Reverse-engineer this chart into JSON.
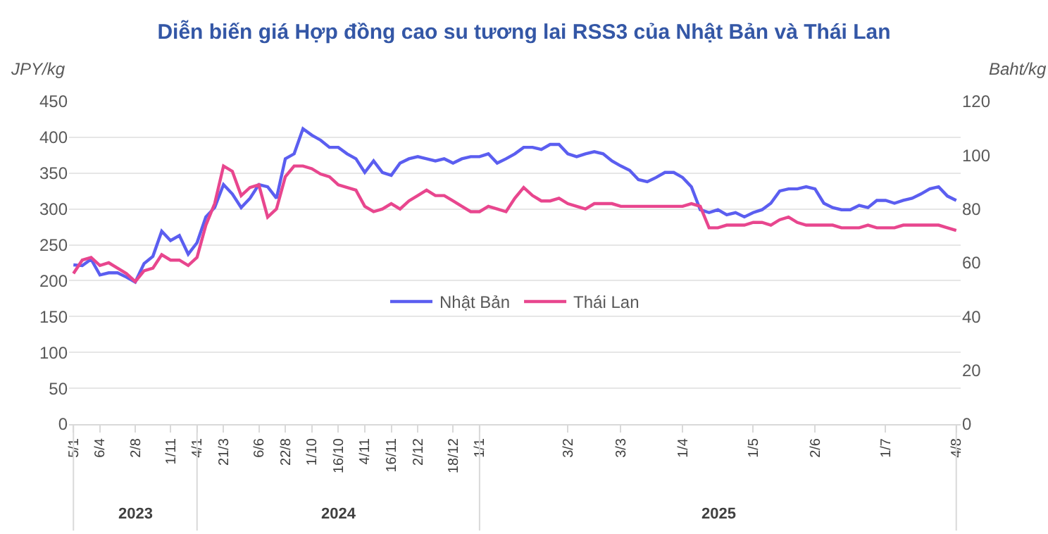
{
  "chart_data": {
    "type": "line",
    "title": "Diễn biến giá Hợp đồng cao su tương lai RSS3 của Nhật Bản và Thái Lan",
    "ylabel": "JPY/kg",
    "y2label": "Baht/kg",
    "categories": [
      "5/1",
      null,
      null,
      "6/4",
      null,
      null,
      null,
      "2/8",
      null,
      null,
      null,
      "1/11",
      null,
      null,
      "4/1",
      null,
      null,
      "21/3",
      null,
      null,
      null,
      "6/6",
      null,
      null,
      "22/8",
      null,
      null,
      "1/10",
      null,
      null,
      "16/10",
      null,
      null,
      "4/11",
      null,
      null,
      "16/11",
      null,
      null,
      "2/12",
      null,
      null,
      null,
      "18/12",
      null,
      null,
      "1/1",
      null,
      null,
      null,
      null,
      null,
      null,
      null,
      null,
      null,
      "3/2",
      null,
      null,
      null,
      null,
      null,
      "3/3",
      null,
      null,
      null,
      null,
      null,
      null,
      "1/4",
      null,
      null,
      null,
      null,
      null,
      null,
      null,
      "1/5",
      null,
      null,
      null,
      null,
      null,
      null,
      "2/6",
      null,
      null,
      null,
      null,
      null,
      null,
      null,
      "1/7",
      null,
      null,
      null,
      null,
      null,
      null,
      null,
      "4/8"
    ],
    "series": [
      {
        "name": "Nhật Bản",
        "color": "#5b5ef0",
        "values": [
          222,
          221,
          230,
          208,
          211,
          211,
          205,
          198,
          224,
          234,
          269,
          256,
          263,
          237,
          253,
          289,
          302,
          334,
          321,
          302,
          315,
          334,
          331,
          315,
          370,
          377,
          412,
          403,
          396,
          386,
          386,
          377,
          370,
          351,
          367,
          351,
          347,
          364,
          370,
          373,
          370,
          367,
          370,
          364,
          370,
          373,
          373,
          377,
          364,
          370,
          377,
          386,
          386,
          383,
          390,
          390,
          377,
          373,
          377,
          380,
          377,
          367,
          360,
          354,
          341,
          338,
          344,
          351,
          351,
          344,
          331,
          299,
          295,
          299,
          292,
          295,
          289,
          295,
          299,
          308,
          325,
          328,
          328,
          331,
          328,
          308,
          302,
          299,
          299,
          305,
          302,
          312,
          312,
          308,
          312,
          315,
          321,
          328,
          331,
          318,
          312
        ]
      },
      {
        "name": "Thái Lan",
        "color": "#e8468e",
        "axis": "y2",
        "values": [
          56,
          61,
          62,
          59,
          60,
          58,
          56,
          53,
          57,
          58,
          63,
          61,
          61,
          59,
          62,
          74,
          82,
          96,
          94,
          85,
          88,
          89,
          77,
          80,
          92,
          96,
          96,
          95,
          93,
          92,
          89,
          88,
          87,
          81,
          79,
          80,
          82,
          80,
          83,
          85,
          87,
          85,
          85,
          83,
          81,
          79,
          79,
          81,
          80,
          79,
          84,
          88,
          85,
          83,
          83,
          84,
          82,
          81,
          80,
          82,
          82,
          82,
          81,
          81,
          81,
          81,
          81,
          81,
          81,
          81,
          82,
          81,
          73,
          73,
          74,
          74,
          74,
          75,
          75,
          74,
          76,
          77,
          75,
          74,
          74,
          74,
          74,
          73,
          73,
          73,
          74,
          73,
          73,
          73,
          74,
          74,
          74,
          74,
          74,
          73,
          72
        ]
      }
    ],
    "ylim": [
      0,
      450
    ],
    "yticks": [
      0,
      50,
      100,
      150,
      200,
      250,
      300,
      350,
      400,
      450
    ],
    "y2lim": [
      0,
      120
    ],
    "y2ticks": [
      0,
      20,
      40,
      60,
      80,
      100,
      120
    ],
    "grid": "y",
    "legend": "center",
    "marker": "none",
    "line_style": "solid",
    "annotations": [
      "2023",
      "2024",
      "2025"
    ]
  }
}
